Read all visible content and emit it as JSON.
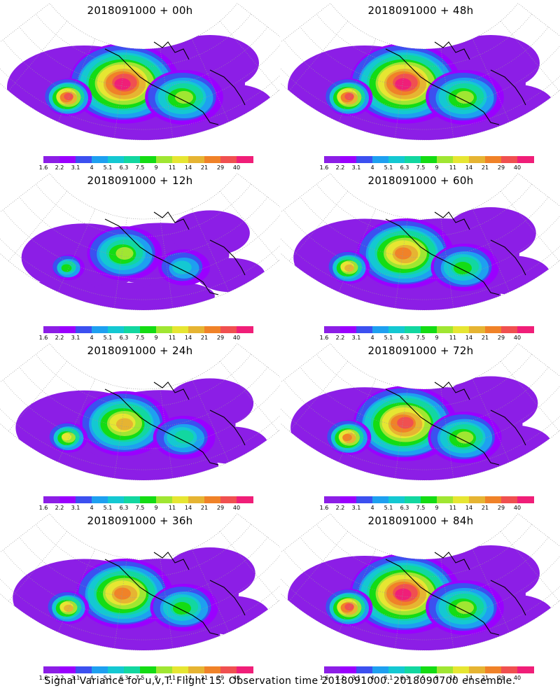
{
  "caption": "Signal Variance for u,v,T. Flight 15. Observation time 2018091000. 2018090700 ensemble.",
  "colorbar": {
    "colors": [
      "#8c1ee6",
      "#9a00ff",
      "#3c50f0",
      "#1ea0f0",
      "#14c8d2",
      "#12d7a0",
      "#14dc14",
      "#a0e632",
      "#e6e632",
      "#e6b432",
      "#f08228",
      "#f05050",
      "#f01e78"
    ],
    "labels": [
      "1.6",
      "2.2",
      "3.1",
      "4",
      "5.1",
      "6.3",
      "7.5",
      "9",
      "11",
      "14",
      "21",
      "29",
      "40"
    ]
  },
  "chart_data": [
    {
      "type": "heatmap",
      "title": "2018091000 + 00h",
      "levels": [
        1.6,
        2.2,
        3.1,
        4,
        5.1,
        6.3,
        7.5,
        9,
        11,
        14,
        21,
        29,
        40
      ],
      "max_level_index": 12
    },
    {
      "type": "heatmap",
      "title": "2018091000 + 48h",
      "levels": [
        1.6,
        2.2,
        3.1,
        4,
        5.1,
        6.3,
        7.5,
        9,
        11,
        14,
        21,
        29,
        40
      ],
      "max_level_index": 12
    },
    {
      "type": "heatmap",
      "title": "2018091000 + 12h",
      "levels": [
        1.6,
        2.2,
        3.1,
        4,
        5.1,
        6.3,
        7.5,
        9,
        11,
        14,
        21,
        29,
        40
      ],
      "max_level_index": 7
    },
    {
      "type": "heatmap",
      "title": "2018091000 + 60h",
      "levels": [
        1.6,
        2.2,
        3.1,
        4,
        5.1,
        6.3,
        7.5,
        9,
        11,
        14,
        21,
        29,
        40
      ],
      "max_level_index": 10
    },
    {
      "type": "heatmap",
      "title": "2018091000 + 24h",
      "levels": [
        1.6,
        2.2,
        3.1,
        4,
        5.1,
        6.3,
        7.5,
        9,
        11,
        14,
        21,
        29,
        40
      ],
      "max_level_index": 9
    },
    {
      "type": "heatmap",
      "title": "2018091000 + 72h",
      "levels": [
        1.6,
        2.2,
        3.1,
        4,
        5.1,
        6.3,
        7.5,
        9,
        11,
        14,
        21,
        29,
        40
      ],
      "max_level_index": 11
    },
    {
      "type": "heatmap",
      "title": "2018091000 + 36h",
      "levels": [
        1.6,
        2.2,
        3.1,
        4,
        5.1,
        6.3,
        7.5,
        9,
        11,
        14,
        21,
        29,
        40
      ],
      "max_level_index": 10
    },
    {
      "type": "heatmap",
      "title": "2018091000 + 84h",
      "levels": [
        1.6,
        2.2,
        3.1,
        4,
        5.1,
        6.3,
        7.5,
        9,
        11,
        14,
        21,
        29,
        40
      ],
      "max_level_index": 12
    }
  ]
}
